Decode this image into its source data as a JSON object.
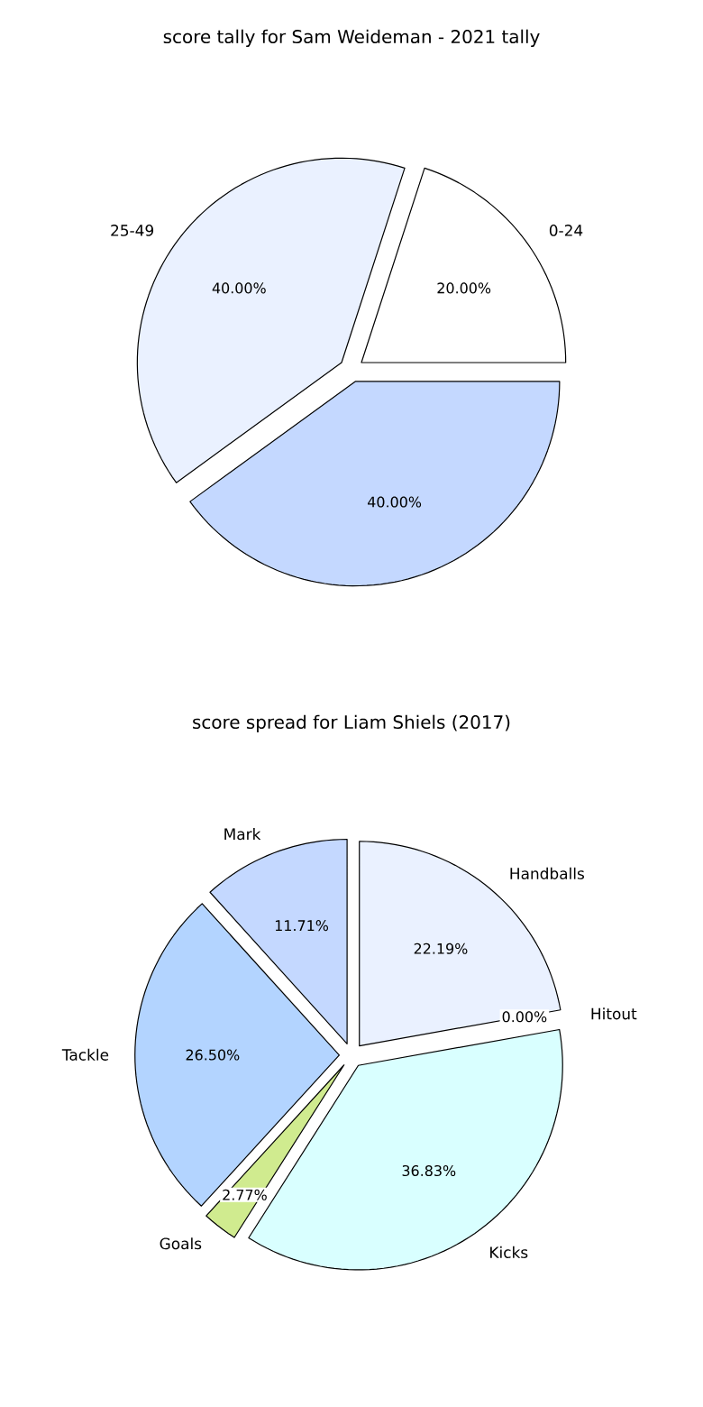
{
  "chart_data": [
    {
      "type": "pie",
      "title": "score tally for Sam Weideman - 2021 tally",
      "categories": [
        "0-24",
        "25-49",
        null
      ],
      "values": [
        20,
        40,
        40
      ],
      "value_labels": [
        "20.00%",
        "40.00%",
        "40.00%"
      ],
      "colors": [
        "#ffffff",
        "#eaf1ff",
        "#c4d8ff"
      ]
    },
    {
      "type": "pie",
      "title": "score spread for Liam Shiels (2017)",
      "categories": [
        "Mark",
        "Tackle",
        "Goals",
        "Kicks",
        "Hitout",
        "Handballs"
      ],
      "values": [
        11.71,
        26.5,
        2.77,
        36.83,
        0.0,
        22.19
      ],
      "value_labels": [
        "11.71%",
        "26.50%",
        "2.77%",
        "36.83%",
        "0.00%",
        "22.19%"
      ],
      "colors": [
        "#c4d8ff",
        "#b3d4ff",
        "#d0eb8f",
        "#d9ffff",
        "#ffffff",
        "#eaf1ff"
      ]
    }
  ]
}
